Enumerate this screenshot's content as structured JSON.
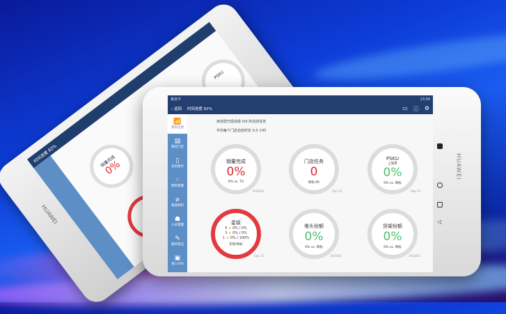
{
  "device_brand": "HUAWEI",
  "status_bar": {
    "carrier": "来自卡",
    "time": "13:54"
  },
  "header": {
    "back_label": "返回",
    "progress_label": "时间进度 82%",
    "icons": [
      "message-icon",
      "help-icon",
      "settings-icon"
    ]
  },
  "summary": {
    "line1": "目前您已经完成 0/0 的访店任务",
    "line2": "平均每个门店访店时长 0.0 小时"
  },
  "sidebar": {
    "items": [
      {
        "label": "我的业绩",
        "icon": "chart-icon"
      },
      {
        "label": "我的门店",
        "icon": "store-icon"
      },
      {
        "label": "访店执行",
        "icon": "clipboard-icon"
      },
      {
        "label": "物资管理",
        "icon": "grid-icon"
      },
      {
        "label": "渠道材料",
        "icon": "paperclip-icon"
      },
      {
        "label": "人员管理",
        "icon": "people-icon"
      },
      {
        "label": "我的笔记",
        "icon": "note-icon"
      },
      {
        "label": "进入SVS",
        "icon": "enter-icon"
      }
    ]
  },
  "cards": [
    {
      "title": "销量完成",
      "value": "0%",
      "sub": "0% vs. TG",
      "date": "2016/02",
      "color": "#e0262d"
    },
    {
      "title": "门店任务",
      "value": "0",
      "sub": "目标:85",
      "date": "Sep 15",
      "color": "#e0262d"
    },
    {
      "title": "PSKU",
      "subtitle": "上架率",
      "value": "0%",
      "sub": "0% vs. 目标",
      "date": "Sep 15",
      "color": "#4cc06a"
    },
    {
      "title": "星级",
      "stars": [
        {
          "level": "5",
          "value": "0% / 0%"
        },
        {
          "level": "3",
          "value": "0% / 0%"
        },
        {
          "level": "1",
          "value": "0% / 100%"
        }
      ],
      "sub": "实际/目标",
      "date": "Sep 15",
      "color": "#e23a3f"
    },
    {
      "title": "堆头份额",
      "value": "0%",
      "sub": "0% vs. 目标",
      "date": "2016/02",
      "color": "#4cc06a"
    },
    {
      "title": "货架份额",
      "value": "0%",
      "sub": "0% vs. 目标",
      "date": "2016/02",
      "color": "#4cc06a"
    }
  ]
}
